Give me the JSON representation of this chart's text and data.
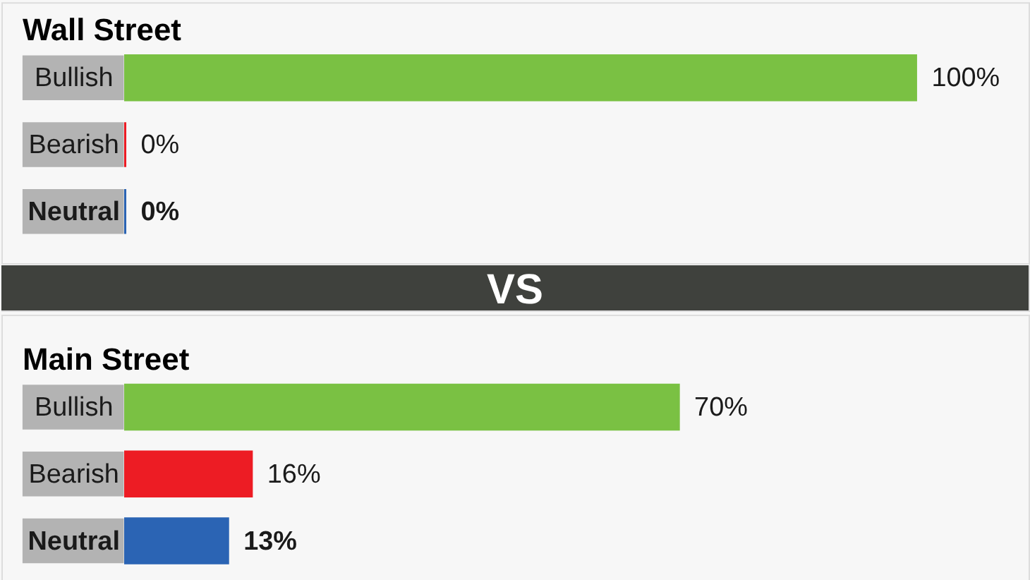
{
  "chart_data": [
    {
      "type": "bar",
      "orientation": "horizontal",
      "title": "Wall Street",
      "categories": [
        "Bullish",
        "Bearish",
        "Neutral"
      ],
      "values": [
        100,
        0,
        0
      ],
      "colors": [
        "#7ac143",
        "#ed1c24",
        "#2b64b4"
      ],
      "value_labels": [
        "100%",
        "0%",
        "0%"
      ],
      "tick_labels": "y"
    },
    {
      "type": "other",
      "annotations": [
        "VS"
      ]
    },
    {
      "type": "bar",
      "orientation": "horizontal",
      "title": "Main Street",
      "categories": [
        "Bullish",
        "Bearish",
        "Neutral"
      ],
      "values": [
        70,
        16,
        13
      ],
      "colors": [
        "#7ac143",
        "#ed1c24",
        "#2b64b4"
      ],
      "value_labels": [
        "70%",
        "16%",
        "13%"
      ],
      "tick_labels": "y"
    }
  ]
}
